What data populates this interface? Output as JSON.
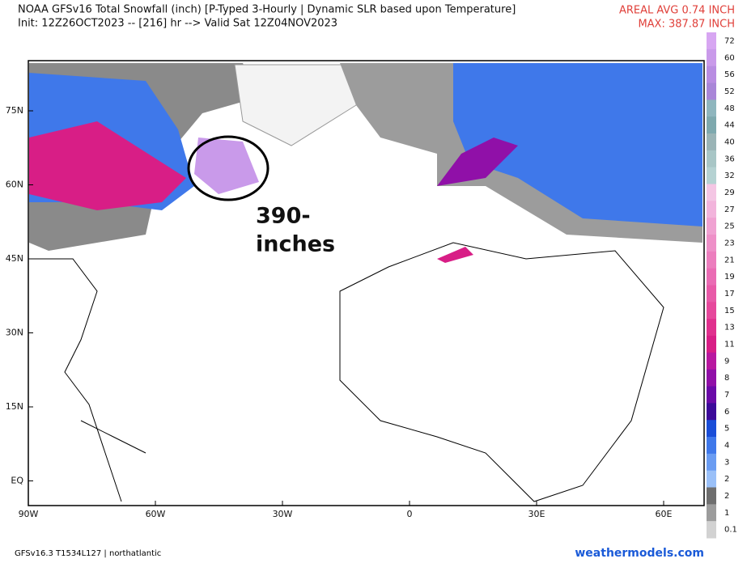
{
  "header": {
    "title": "NOAA GFSv16 Total Snowfall (inch) [P-Typed 3-Hourly | Dynamic SLR based upon Temperature]",
    "subtitle": "Init: 12Z26OCT2023 -- [216] hr --> Valid Sat 12Z04NOV2023",
    "areal_avg": "AREAL AVG 0.74 INCH",
    "max": "MAX: 387.87 INCH"
  },
  "map": {
    "lat_labels": [
      "75N",
      "60N",
      "45N",
      "30N",
      "15N",
      "EQ"
    ],
    "lon_labels": [
      "90W",
      "60W",
      "30W",
      "0",
      "30E",
      "60E"
    ],
    "annotation": [
      "390-",
      "inches"
    ]
  },
  "colorbar": [
    {
      "label": "72",
      "color": "#d7a6f2"
    },
    {
      "label": "60",
      "color": "#c99aea"
    },
    {
      "label": "56",
      "color": "#b98de2"
    },
    {
      "label": "52",
      "color": "#a986d8"
    },
    {
      "label": "48",
      "color": "#8fb6be"
    },
    {
      "label": "44",
      "color": "#7ea9ae"
    },
    {
      "label": "40",
      "color": "#9ab4b6"
    },
    {
      "label": "36",
      "color": "#a8c6c6"
    },
    {
      "label": "32",
      "color": "#b5d2d2"
    },
    {
      "label": "29",
      "color": "#f4c6e4"
    },
    {
      "label": "27",
      "color": "#f2b4dc"
    },
    {
      "label": "25",
      "color": "#f0a2d2"
    },
    {
      "label": "23",
      "color": "#ee90c8"
    },
    {
      "label": "21",
      "color": "#ec7ebe"
    },
    {
      "label": "19",
      "color": "#ea6cb4"
    },
    {
      "label": "17",
      "color": "#e85aa8"
    },
    {
      "label": "15",
      "color": "#e6489c"
    },
    {
      "label": "13",
      "color": "#e0308e"
    },
    {
      "label": "11",
      "color": "#d81e86"
    },
    {
      "label": "9",
      "color": "#b818a0"
    },
    {
      "label": "8",
      "color": "#9010a8"
    },
    {
      "label": "7",
      "color": "#6a0aa8"
    },
    {
      "label": "6",
      "color": "#3c0a9a"
    },
    {
      "label": "5",
      "color": "#1a4ed8"
    },
    {
      "label": "4",
      "color": "#3f78ea"
    },
    {
      "label": "3",
      "color": "#6a9cf2"
    },
    {
      "label": "2",
      "color": "#9ac0f8"
    },
    {
      "label": "2",
      "color": "#6e6e6e"
    },
    {
      "label": "1",
      "color": "#9c9c9c"
    },
    {
      "label": "0.1",
      "color": "#d2d2d2"
    }
  ],
  "footer": {
    "left": "GFSv16.3 T1534L127 | northatlantic",
    "right": "weathermodels.com"
  }
}
